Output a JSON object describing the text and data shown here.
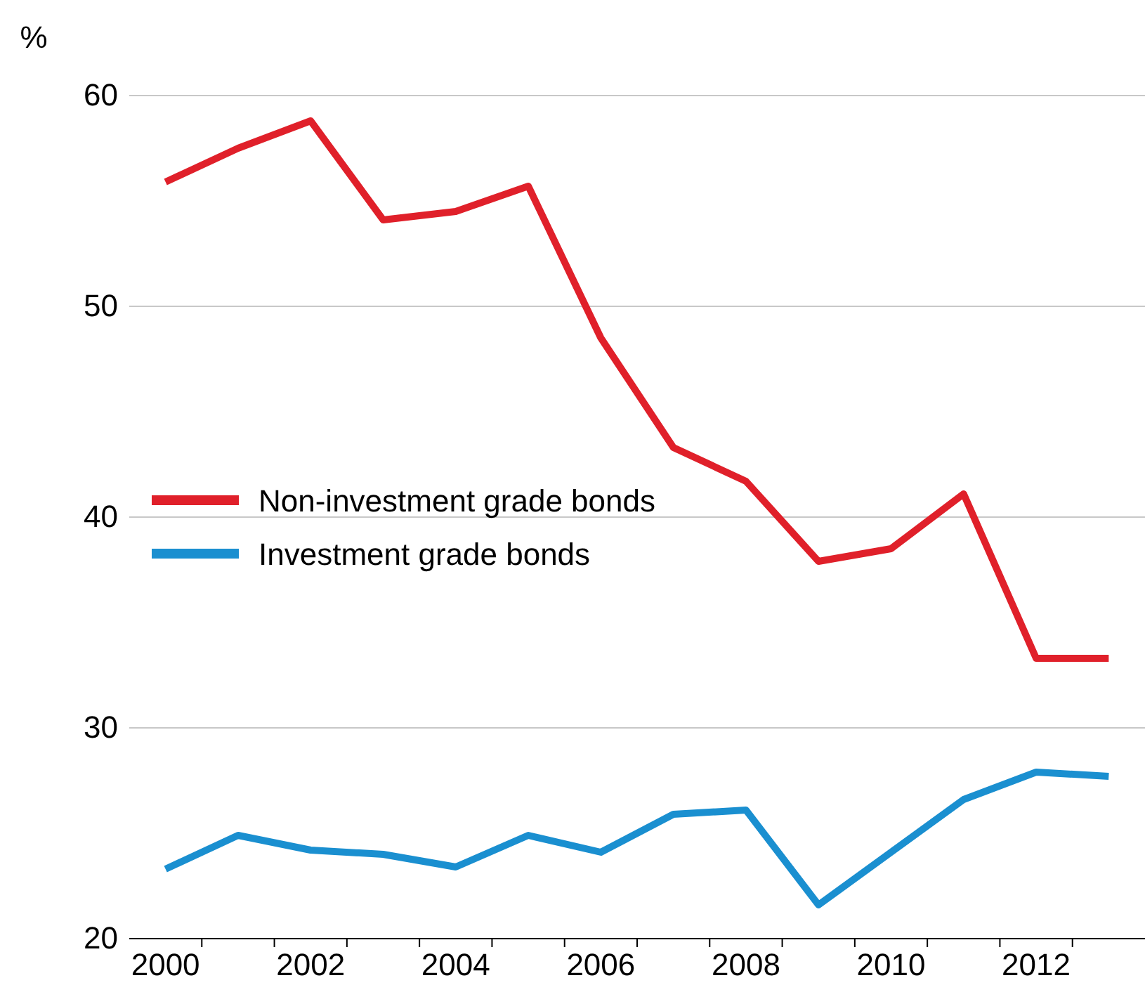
{
  "chart_data": {
    "type": "line",
    "ylabel": "%",
    "categories": [
      "2000",
      null,
      "2002",
      null,
      "2004",
      null,
      "2006",
      null,
      "2008",
      null,
      "2010",
      null,
      "2012",
      null
    ],
    "series": [
      {
        "name": "Non-investment grade bonds",
        "color": "#e0202a",
        "values": [
          55.9,
          57.5,
          58.8,
          54.1,
          54.5,
          55.7,
          48.5,
          43.3,
          41.7,
          37.9,
          38.5,
          41.1,
          33.3,
          33.3
        ]
      },
      {
        "name": "Investment grade bonds",
        "color": "#1a8fd0",
        "values": [
          23.3,
          24.9,
          24.2,
          24.0,
          23.4,
          24.9,
          24.1,
          25.9,
          26.1,
          21.6,
          24.1,
          26.6,
          27.9,
          27.7
        ]
      }
    ],
    "ylim": [
      20,
      60
    ],
    "yticks": [
      20,
      30,
      40,
      50,
      60
    ],
    "grid": "y",
    "legend": "left",
    "line_style": "solid",
    "marker": "none"
  }
}
